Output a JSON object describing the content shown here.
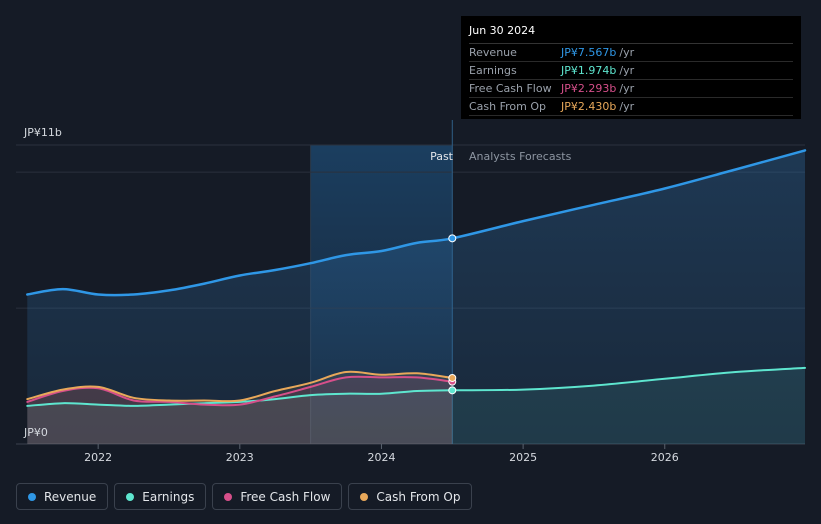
{
  "colors": {
    "revenue": "#2f97e6",
    "earnings": "#5ee6cf",
    "fcf": "#d64f8a",
    "cfo": "#e8a85a",
    "grid": "#2a313d",
    "axis_text": "#d5d9df"
  },
  "tooltip": {
    "date": "Jun 30 2024",
    "rows": [
      {
        "label": "Revenue",
        "value": "JP¥7.567b",
        "unit": "/yr",
        "color": "#2f97e6"
      },
      {
        "label": "Earnings",
        "value": "JP¥1.974b",
        "unit": "/yr",
        "color": "#5ee6cf"
      },
      {
        "label": "Free Cash Flow",
        "value": "JP¥2.293b",
        "unit": "/yr",
        "color": "#d64f8a"
      },
      {
        "label": "Cash From Op",
        "value": "JP¥2.430b",
        "unit": "/yr",
        "color": "#e8a85a"
      }
    ]
  },
  "legend": [
    {
      "label": "Revenue",
      "color": "#2f97e6"
    },
    {
      "label": "Earnings",
      "color": "#5ee6cf"
    },
    {
      "label": "Free Cash Flow",
      "color": "#d64f8a"
    },
    {
      "label": "Cash From Op",
      "color": "#e8a85a"
    }
  ],
  "chart_data": {
    "type": "line",
    "y_top_label": "JP¥11b",
    "y_bottom_label": "JP¥0",
    "ylim": [
      0,
      11
    ],
    "xlim": [
      2021.42,
      2026.99
    ],
    "x_ticks": [
      2022,
      2023,
      2024,
      2025,
      2026
    ],
    "x_tick_labels": [
      "2022",
      "2023",
      "2024",
      "2025",
      "2026"
    ],
    "past_label": "Past",
    "forecast_label": "Analysts Forecasts",
    "past_start": 2023.5,
    "divider": 2024.5,
    "series": [
      {
        "name": "Revenue",
        "key": "revenue",
        "x": [
          2021.5,
          2021.75,
          2022.0,
          2022.25,
          2022.5,
          2022.75,
          2023.0,
          2023.25,
          2023.5,
          2023.75,
          2024.0,
          2024.25,
          2024.5
        ],
        "y": [
          5.5,
          5.7,
          5.5,
          5.5,
          5.65,
          5.9,
          6.2,
          6.4,
          6.65,
          6.95,
          7.1,
          7.4,
          7.567
        ],
        "forecast_x": [
          2024.5,
          2025.0,
          2025.5,
          2026.0,
          2026.5,
          2026.99
        ],
        "forecast_y": [
          7.567,
          8.2,
          8.8,
          9.4,
          10.1,
          10.8
        ]
      },
      {
        "name": "Earnings",
        "key": "earnings",
        "x": [
          2021.5,
          2021.75,
          2022.0,
          2022.25,
          2022.5,
          2022.75,
          2023.0,
          2023.25,
          2023.5,
          2023.75,
          2024.0,
          2024.25,
          2024.5
        ],
        "y": [
          1.4,
          1.5,
          1.45,
          1.4,
          1.45,
          1.5,
          1.55,
          1.65,
          1.8,
          1.85,
          1.85,
          1.95,
          1.974
        ],
        "forecast_x": [
          2024.5,
          2025.0,
          2025.5,
          2026.0,
          2026.5,
          2026.99
        ],
        "forecast_y": [
          1.974,
          2.0,
          2.15,
          2.4,
          2.65,
          2.8
        ]
      },
      {
        "name": "Free Cash Flow",
        "key": "fcf",
        "x": [
          2021.5,
          2021.75,
          2022.0,
          2022.25,
          2022.5,
          2022.75,
          2023.0,
          2023.25,
          2023.5,
          2023.75,
          2024.0,
          2024.25,
          2024.5
        ],
        "y": [
          1.55,
          1.95,
          2.05,
          1.6,
          1.55,
          1.45,
          1.45,
          1.75,
          2.1,
          2.45,
          2.45,
          2.45,
          2.293
        ]
      },
      {
        "name": "Cash From Op",
        "key": "cfo",
        "x": [
          2021.5,
          2021.75,
          2022.0,
          2022.25,
          2022.5,
          2022.75,
          2023.0,
          2023.25,
          2023.5,
          2023.75,
          2024.0,
          2024.25,
          2024.5
        ],
        "y": [
          1.65,
          2.0,
          2.1,
          1.7,
          1.6,
          1.6,
          1.6,
          1.95,
          2.25,
          2.65,
          2.55,
          2.6,
          2.43
        ]
      }
    ]
  }
}
